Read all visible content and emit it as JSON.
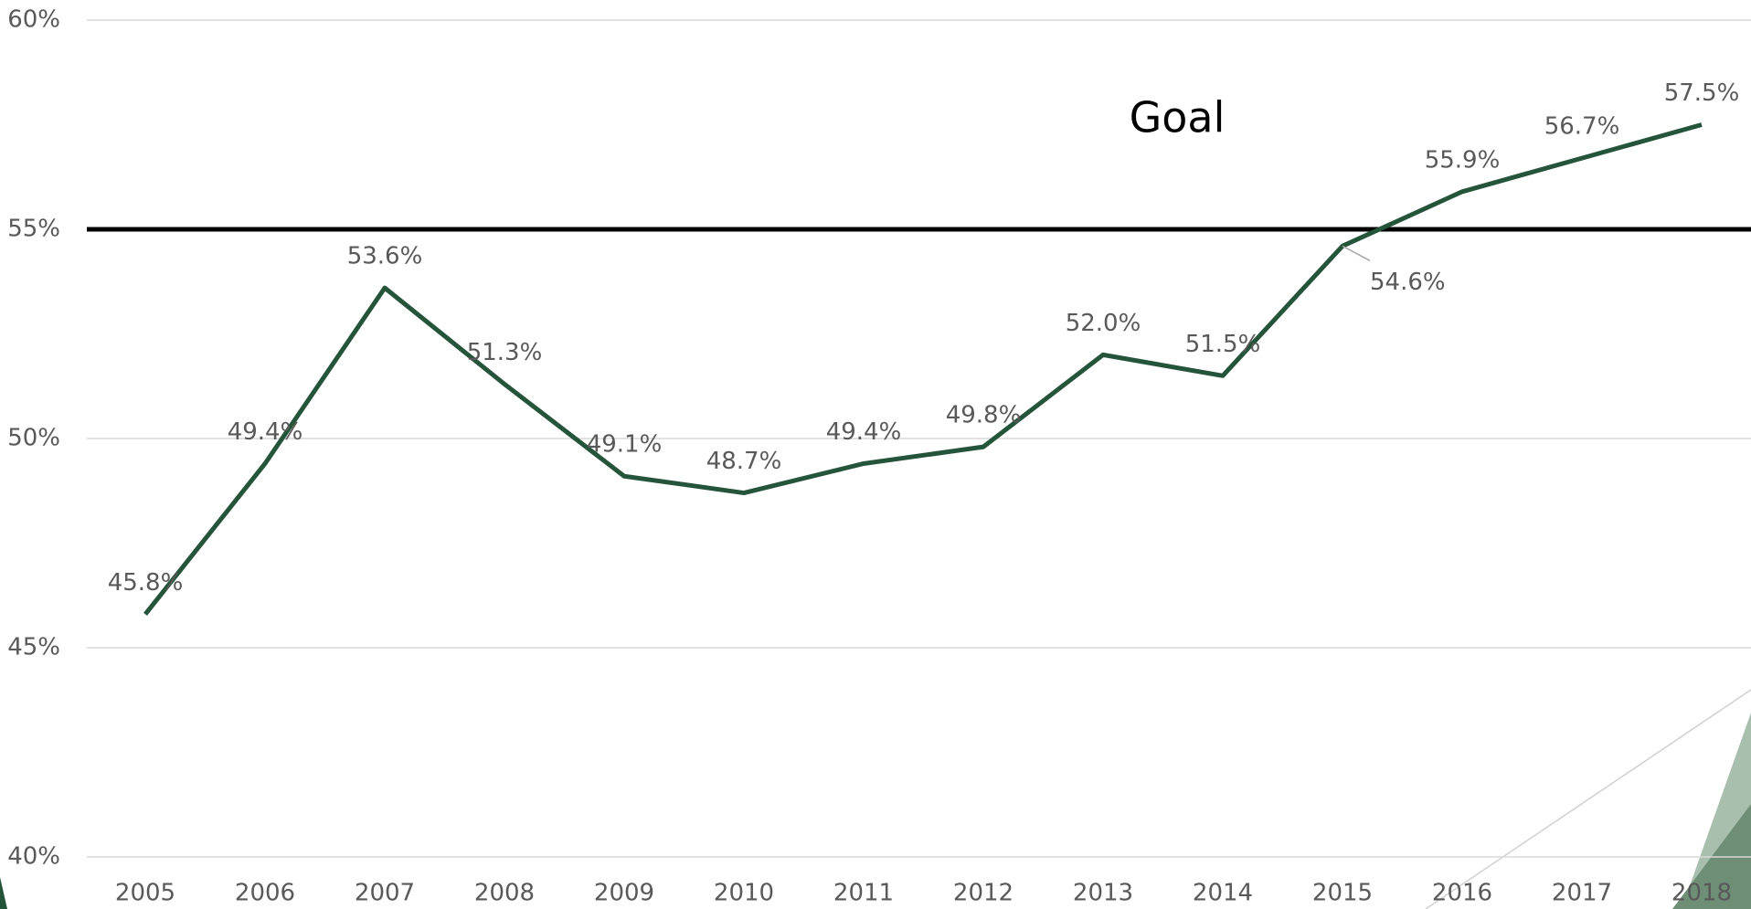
{
  "chart_data": {
    "type": "line",
    "categories": [
      "2005",
      "2006",
      "2007",
      "2008",
      "2009",
      "2010",
      "2011",
      "2012",
      "2013",
      "2014",
      "2015",
      "2016",
      "2017",
      "2018"
    ],
    "series": [
      {
        "color": "#24553a",
        "values": [
          45.8,
          49.4,
          53.6,
          51.3,
          49.1,
          48.7,
          49.4,
          49.8,
          52.0,
          51.5,
          54.6,
          55.9,
          56.7,
          57.5
        ],
        "value_labels": [
          "45.8%",
          "49.4%",
          "53.6%",
          "51.3%",
          "49.1%",
          "48.7%",
          "49.4%",
          "49.8%",
          "52.0%",
          "51.5%",
          "54.6%",
          "55.9%",
          "56.7%",
          "57.5%"
        ]
      }
    ],
    "ylim": [
      40,
      60
    ],
    "yticks": [
      {
        "value": 40,
        "label": "40%"
      },
      {
        "value": 45,
        "label": "45%"
      },
      {
        "value": 50,
        "label": "50%"
      },
      {
        "value": 55,
        "label": "55%"
      },
      {
        "value": 60,
        "label": "60%"
      }
    ],
    "grid": true,
    "goal": {
      "value": 55,
      "label": "Goal",
      "color": "#000000"
    }
  }
}
